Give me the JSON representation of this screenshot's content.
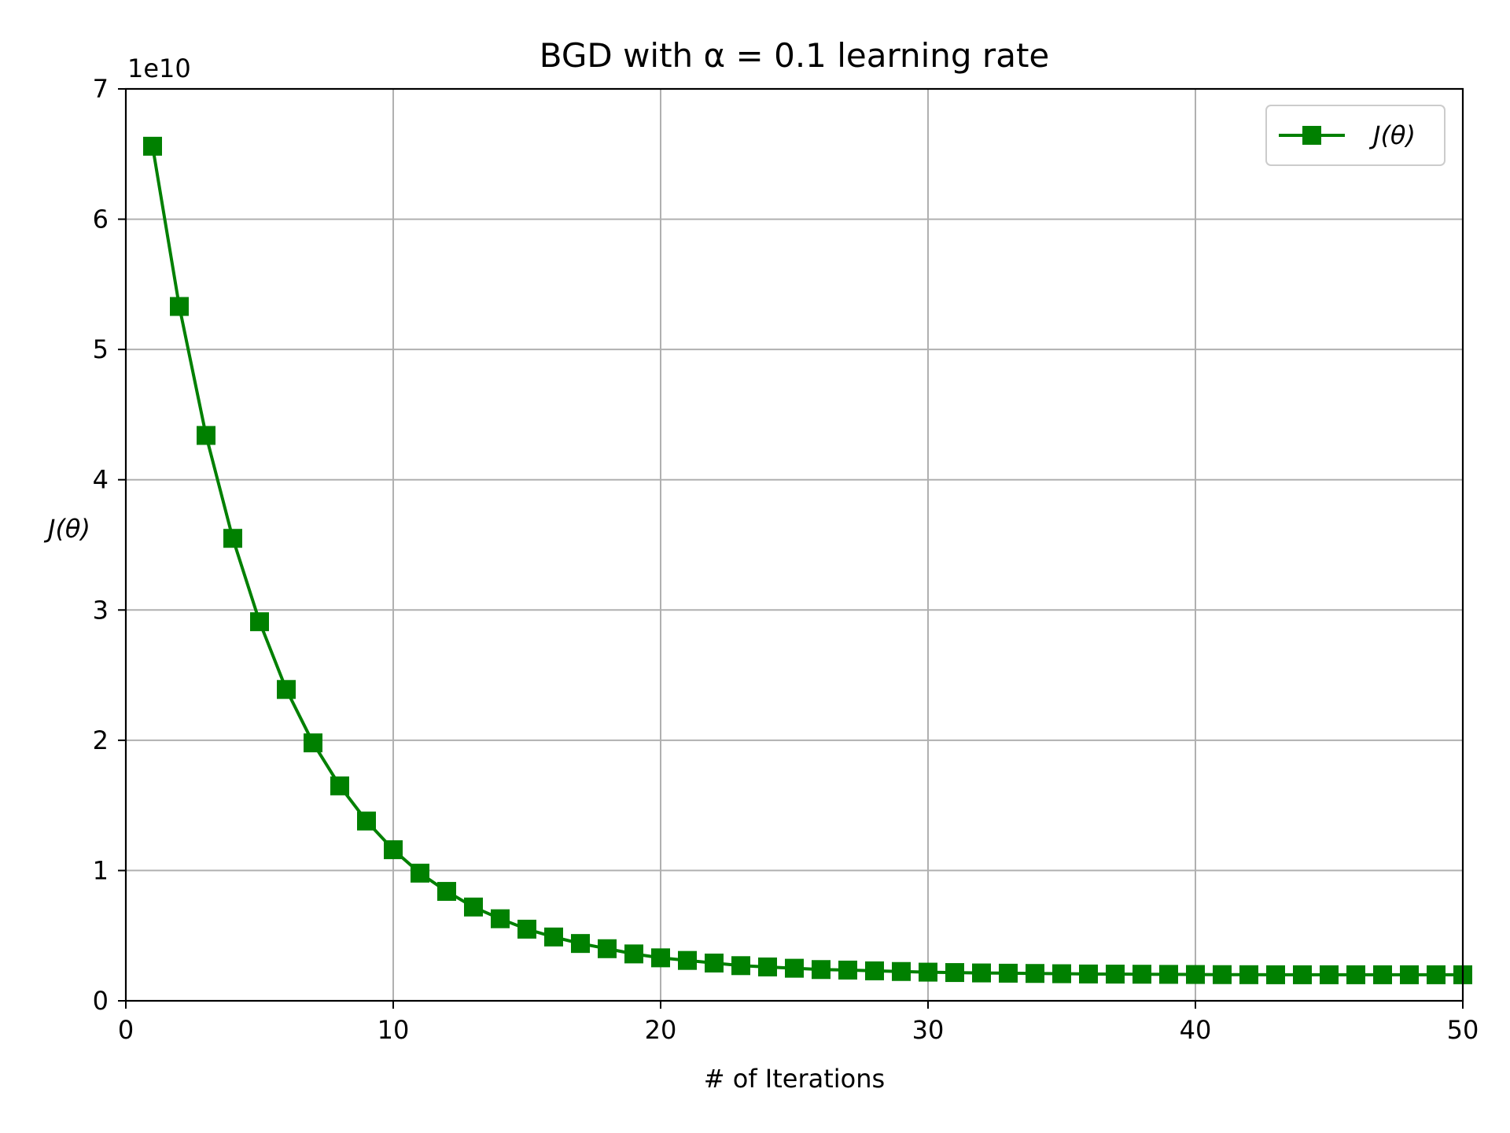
{
  "chart_data": {
    "type": "line",
    "title": "BGD with α = 0.1 learning rate",
    "xlabel": "# of Iterations",
    "ylabel": "J(θ)",
    "y_offset_label": "1e10",
    "xlim": [
      0,
      50
    ],
    "ylim": [
      0,
      7
    ],
    "xticks": [
      0,
      10,
      20,
      30,
      40,
      50
    ],
    "yticks": [
      0,
      1,
      2,
      3,
      4,
      5,
      6,
      7
    ],
    "grid": true,
    "legend_position": "top-right",
    "line_color": "#008000",
    "marker": "square",
    "series": [
      {
        "name": "J(θ)",
        "x": [
          1,
          2,
          3,
          4,
          5,
          6,
          7,
          8,
          9,
          10,
          11,
          12,
          13,
          14,
          15,
          16,
          17,
          18,
          19,
          20,
          21,
          22,
          23,
          24,
          25,
          26,
          27,
          28,
          29,
          30,
          31,
          32,
          33,
          34,
          35,
          36,
          37,
          38,
          39,
          40,
          41,
          42,
          43,
          44,
          45,
          46,
          47,
          48,
          49,
          50
        ],
        "y": [
          6.56,
          5.33,
          4.34,
          3.55,
          2.91,
          2.39,
          1.98,
          1.65,
          1.38,
          1.16,
          0.98,
          0.84,
          0.72,
          0.63,
          0.55,
          0.49,
          0.44,
          0.4,
          0.36,
          0.33,
          0.31,
          0.29,
          0.27,
          0.26,
          0.25,
          0.24,
          0.236,
          0.23,
          0.225,
          0.22,
          0.217,
          0.214,
          0.212,
          0.21,
          0.208,
          0.206,
          0.205,
          0.204,
          0.203,
          0.202,
          0.201,
          0.2005,
          0.2,
          0.2,
          0.2,
          0.2,
          0.2,
          0.2,
          0.2,
          0.2
        ]
      }
    ]
  }
}
